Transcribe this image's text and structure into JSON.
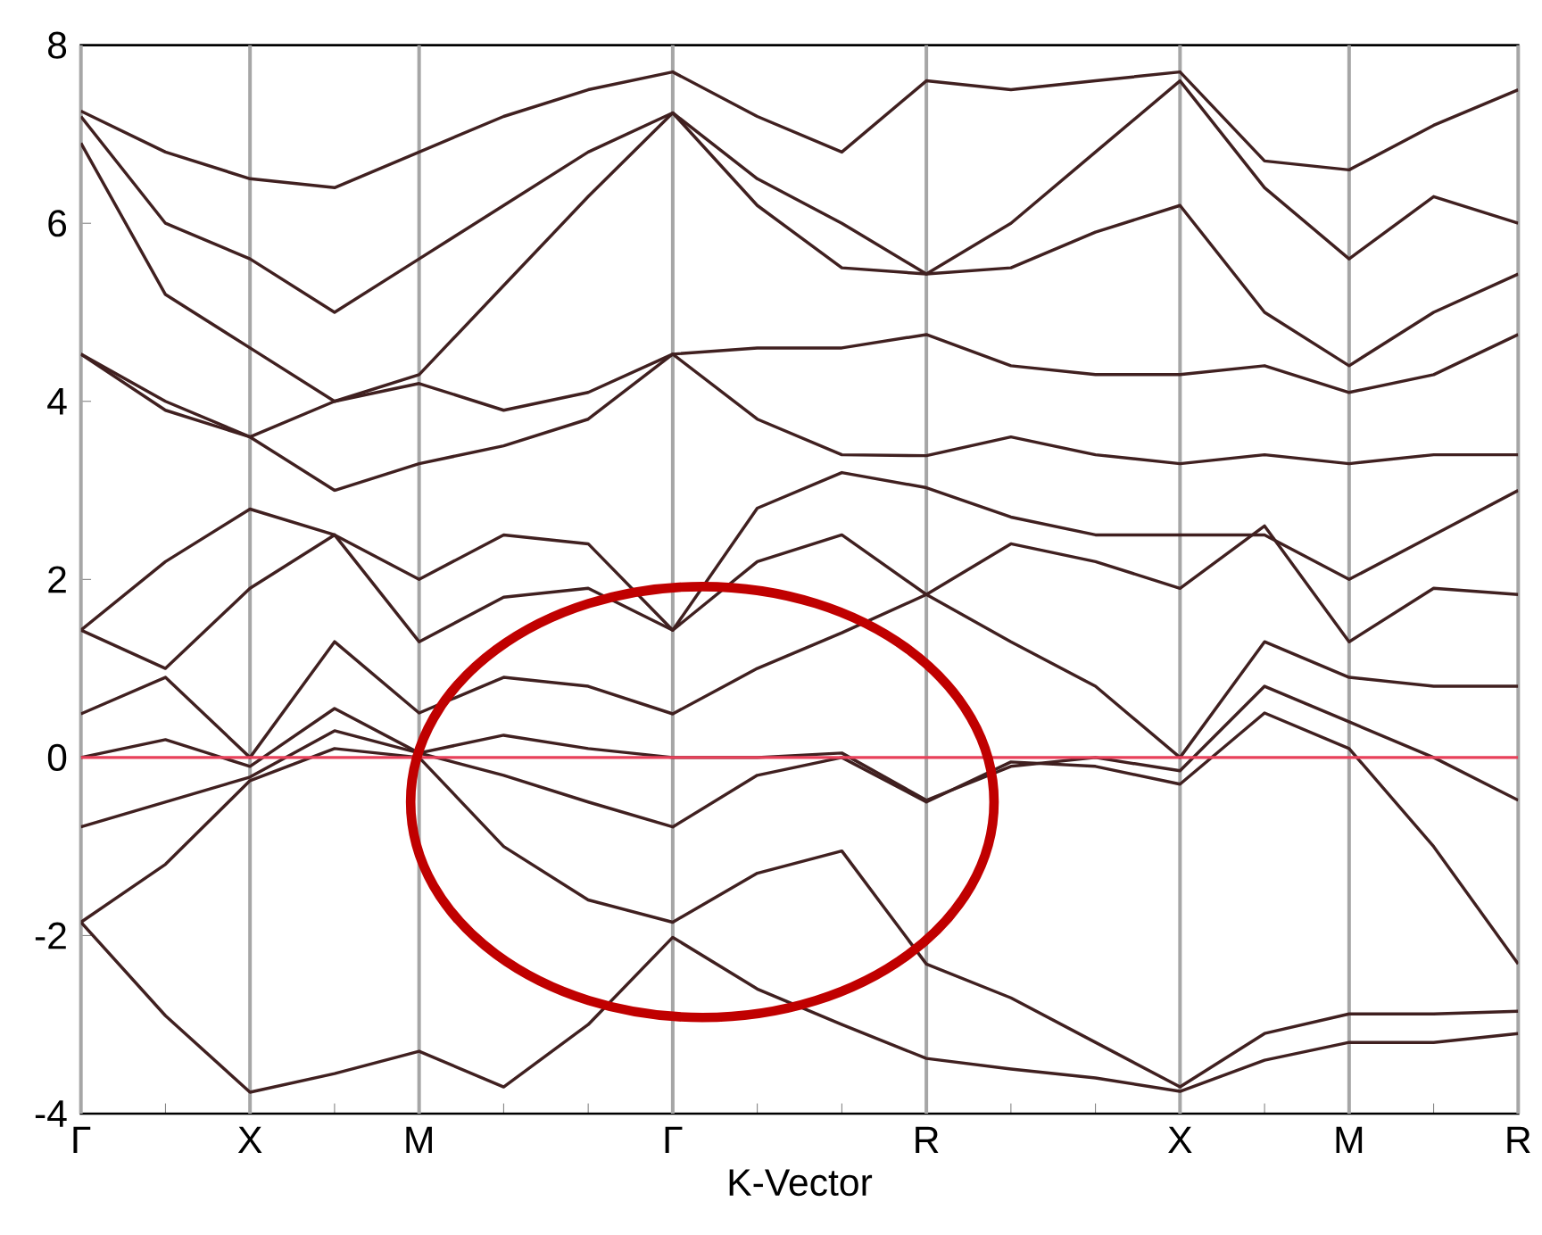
{
  "chart_data": {
    "type": "line",
    "xlabel": "K-Vector",
    "categories": [
      "Γ",
      null,
      "X",
      null,
      "M",
      null,
      null,
      "Γ",
      null,
      null,
      "R",
      null,
      null,
      "X",
      null,
      "M",
      null,
      "R"
    ],
    "ylim": [
      -4,
      8
    ],
    "yticks": [
      -4,
      -2,
      0,
      2,
      4,
      6,
      8
    ],
    "grid": "x",
    "ref_lines": [
      {
        "axis": "y",
        "value": 0,
        "color": "#e8405a"
      }
    ],
    "series": [
      {
        "color": "#402020",
        "values": [
          -1.85,
          -2.9,
          -3.76,
          -3.55,
          -3.3,
          -3.7,
          -3.0,
          -2.02,
          -2.6,
          -3.0,
          -3.38,
          -3.5,
          -3.6,
          -3.75,
          -3.4,
          -3.2,
          -3.2,
          -3.1
        ]
      },
      {
        "color": "#402020",
        "values": [
          -1.85,
          -1.2,
          -0.26,
          0.1,
          0.0,
          -1.0,
          -1.6,
          -1.85,
          -1.3,
          -1.05,
          -2.32,
          -2.7,
          -3.2,
          -3.7,
          -3.1,
          -2.88,
          -2.88,
          -2.85
        ]
      },
      {
        "color": "#402020",
        "values": [
          -0.78,
          -0.5,
          -0.22,
          0.3,
          0.05,
          -0.2,
          -0.5,
          -0.78,
          -0.2,
          0.0,
          -0.5,
          -0.05,
          -0.1,
          -0.3,
          0.5,
          0.1,
          -1.0,
          -2.32
        ]
      },
      {
        "color": "#402020",
        "values": [
          0.0,
          0.2,
          -0.1,
          0.55,
          0.05,
          0.25,
          0.1,
          0.0,
          0.0,
          0.05,
          -0.48,
          -0.1,
          0.0,
          -0.15,
          0.8,
          0.4,
          0.0,
          -0.48
        ]
      },
      {
        "color": "#402020",
        "values": [
          0.49,
          0.9,
          0.0,
          1.3,
          0.5,
          0.9,
          0.8,
          0.49,
          1.0,
          1.4,
          1.83,
          1.3,
          0.8,
          0.0,
          1.3,
          0.9,
          0.8,
          0.8
        ]
      },
      {
        "color": "#402020",
        "values": [
          1.43,
          1.0,
          1.9,
          2.5,
          1.3,
          1.8,
          1.9,
          1.43,
          2.2,
          2.5,
          1.83,
          2.4,
          2.2,
          1.9,
          2.6,
          1.3,
          1.9,
          1.83
        ]
      },
      {
        "color": "#402020",
        "values": [
          1.43,
          2.2,
          2.79,
          2.5,
          2.0,
          2.5,
          2.4,
          1.43,
          2.8,
          3.2,
          3.03,
          2.7,
          2.5,
          2.5,
          2.5,
          2.0,
          2.5,
          3.0
        ]
      },
      {
        "color": "#402020",
        "values": [
          4.53,
          3.9,
          3.6,
          3.0,
          3.3,
          3.5,
          3.8,
          4.53,
          3.8,
          3.4,
          3.39,
          3.6,
          3.4,
          3.3,
          3.4,
          3.3,
          3.4,
          3.4
        ]
      },
      {
        "color": "#402020",
        "values": [
          4.53,
          4.0,
          3.6,
          4.0,
          4.2,
          3.9,
          4.1,
          4.53,
          4.6,
          4.6,
          4.75,
          4.4,
          4.3,
          4.3,
          4.4,
          4.1,
          4.3,
          4.75
        ]
      },
      {
        "color": "#402020",
        "values": [
          6.9,
          5.2,
          4.6,
          4.0,
          4.3,
          5.3,
          6.3,
          7.24,
          6.2,
          5.5,
          5.43,
          5.5,
          5.9,
          6.2,
          5.0,
          4.4,
          5.0,
          5.43
        ]
      },
      {
        "color": "#402020",
        "values": [
          7.2,
          6.0,
          5.6,
          5.0,
          5.6,
          6.2,
          6.8,
          7.24,
          6.5,
          6.0,
          5.43,
          6.0,
          6.8,
          7.6,
          6.4,
          5.6,
          6.3,
          6.0
        ]
      },
      {
        "color": "#402020",
        "values": [
          7.26,
          6.8,
          6.5,
          6.4,
          6.8,
          7.2,
          7.5,
          7.7,
          7.2,
          6.8,
          7.6,
          7.5,
          7.6,
          7.7,
          6.7,
          6.6,
          7.1,
          7.5
        ]
      }
    ]
  }
}
